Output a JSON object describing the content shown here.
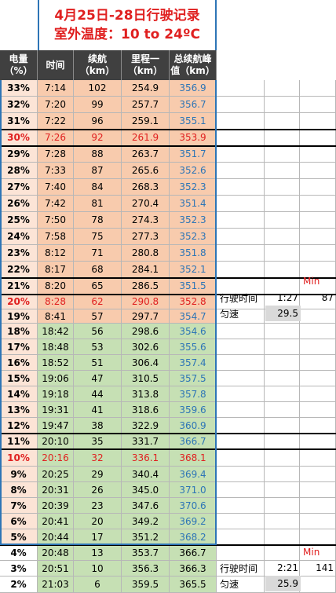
{
  "title": {
    "line1": "4月25日-28日行驶记录",
    "line2": "室外温度：10 to 24ºC"
  },
  "headers": [
    {
      "l1": "电量",
      "l2": "（%）"
    },
    {
      "l1": "时间",
      "l2": ""
    },
    {
      "l1": "续航",
      "l2": "（km）"
    },
    {
      "l1": "里程一",
      "l2": "（km）"
    },
    {
      "l1": "总续航峰",
      "l2": "值（km）"
    }
  ],
  "colors": {
    "orange": "#f8cbad",
    "green": "#c6e0b4",
    "blue_text": "#2e75b6",
    "red_text": "#e02020"
  },
  "rows": [
    {
      "pct": "33%",
      "time": "7:14",
      "range": "102",
      "mileage": "254.9",
      "peak": "356.9",
      "bg": "orange"
    },
    {
      "pct": "32%",
      "time": "7:20",
      "range": "99",
      "mileage": "257.7",
      "peak": "356.7",
      "bg": "orange"
    },
    {
      "pct": "31%",
      "time": "7:22",
      "range": "96",
      "mileage": "259.1",
      "peak": "355.1",
      "bg": "orange"
    },
    {
      "pct": "30%",
      "time": "7:26",
      "range": "92",
      "mileage": "261.9",
      "peak": "353.9",
      "bg": "orange",
      "highlight": true
    },
    {
      "pct": "29%",
      "time": "7:28",
      "range": "88",
      "mileage": "263.7",
      "peak": "351.7",
      "bg": "orange"
    },
    {
      "pct": "28%",
      "time": "7:33",
      "range": "87",
      "mileage": "265.6",
      "peak": "352.6",
      "bg": "orange"
    },
    {
      "pct": "27%",
      "time": "7:40",
      "range": "84",
      "mileage": "268.3",
      "peak": "352.3",
      "bg": "orange"
    },
    {
      "pct": "26%",
      "time": "7:42",
      "range": "81",
      "mileage": "270.4",
      "peak": "351.4",
      "bg": "orange"
    },
    {
      "pct": "25%",
      "time": "7:50",
      "range": "78",
      "mileage": "274.3",
      "peak": "352.3",
      "bg": "orange"
    },
    {
      "pct": "24%",
      "time": "7:58",
      "range": "75",
      "mileage": "277.3",
      "peak": "352.3",
      "bg": "orange"
    },
    {
      "pct": "23%",
      "time": "8:12",
      "range": "71",
      "mileage": "280.8",
      "peak": "351.8",
      "bg": "orange"
    },
    {
      "pct": "22%",
      "time": "8:17",
      "range": "68",
      "mileage": "284.1",
      "peak": "352.1",
      "bg": "orange"
    },
    {
      "pct": "21%",
      "time": "8:20",
      "range": "65",
      "mileage": "286.5",
      "peak": "351.5",
      "bg": "orange"
    },
    {
      "pct": "20%",
      "time": "8:28",
      "range": "62",
      "mileage": "290.8",
      "peak": "352.8",
      "bg": "orange",
      "highlight": true
    },
    {
      "pct": "19%",
      "time": "8:41",
      "range": "57",
      "mileage": "297.7",
      "peak": "354.7",
      "bg": "orange"
    },
    {
      "pct": "18%",
      "time": "18:42",
      "range": "56",
      "mileage": "298.6",
      "peak": "354.6",
      "bg": "green"
    },
    {
      "pct": "17%",
      "time": "18:48",
      "range": "53",
      "mileage": "302.6",
      "peak": "355.6",
      "bg": "green"
    },
    {
      "pct": "16%",
      "time": "18:52",
      "range": "51",
      "mileage": "306.4",
      "peak": "357.4",
      "bg": "green"
    },
    {
      "pct": "15%",
      "time": "19:06",
      "range": "47",
      "mileage": "310.5",
      "peak": "357.5",
      "bg": "green"
    },
    {
      "pct": "14%",
      "time": "19:18",
      "range": "44",
      "mileage": "313.8",
      "peak": "357.8",
      "bg": "green"
    },
    {
      "pct": "13%",
      "time": "19:31",
      "range": "41",
      "mileage": "318.6",
      "peak": "359.6",
      "bg": "green"
    },
    {
      "pct": "12%",
      "time": "19:47",
      "range": "38",
      "mileage": "322.9",
      "peak": "360.9",
      "bg": "green"
    },
    {
      "pct": "11%",
      "time": "20:10",
      "range": "35",
      "mileage": "331.7",
      "peak": "366.7",
      "bg": "green"
    },
    {
      "pct": "10%",
      "time": "20:16",
      "range": "32",
      "mileage": "336.1",
      "peak": "368.1",
      "bg": "green",
      "highlight": true
    },
    {
      "pct": "9%",
      "time": "20:25",
      "range": "29",
      "mileage": "340.4",
      "peak": "369.4",
      "bg": "green"
    },
    {
      "pct": "8%",
      "time": "20:31",
      "range": "26",
      "mileage": "345.0",
      "peak": "371.0",
      "bg": "green"
    },
    {
      "pct": "7%",
      "time": "20:39",
      "range": "23",
      "mileage": "347.6",
      "peak": "370.6",
      "bg": "green"
    },
    {
      "pct": "6%",
      "time": "20:41",
      "range": "20",
      "mileage": "349.2",
      "peak": "369.2",
      "bg": "green"
    },
    {
      "pct": "5%",
      "time": "20:44",
      "range": "17",
      "mileage": "351.2",
      "peak": "368.2",
      "bg": "green"
    },
    {
      "pct": "4%",
      "time": "20:48",
      "range": "13",
      "mileage": "353.7",
      "peak": "366.7",
      "bg": "green",
      "plain": true
    },
    {
      "pct": "3%",
      "time": "20:51",
      "range": "10",
      "mileage": "356.3",
      "peak": "366.3",
      "bg": "green",
      "plain": true
    },
    {
      "pct": "2%",
      "time": "21:03",
      "range": "6",
      "mileage": "359.5",
      "peak": "365.5",
      "bg": "green",
      "plain": true
    }
  ],
  "side1": {
    "min_label": "Min",
    "drive_time_label": "行驶时间",
    "drive_time": "1:27",
    "distance": "87",
    "avg_speed_label": "匀速",
    "avg_speed": "29.5"
  },
  "side2": {
    "min_label": "Min",
    "drive_time_label": "行驶时间",
    "drive_time": "2:21",
    "distance": "141",
    "avg_speed_label": "匀速",
    "avg_speed": "25.9"
  }
}
